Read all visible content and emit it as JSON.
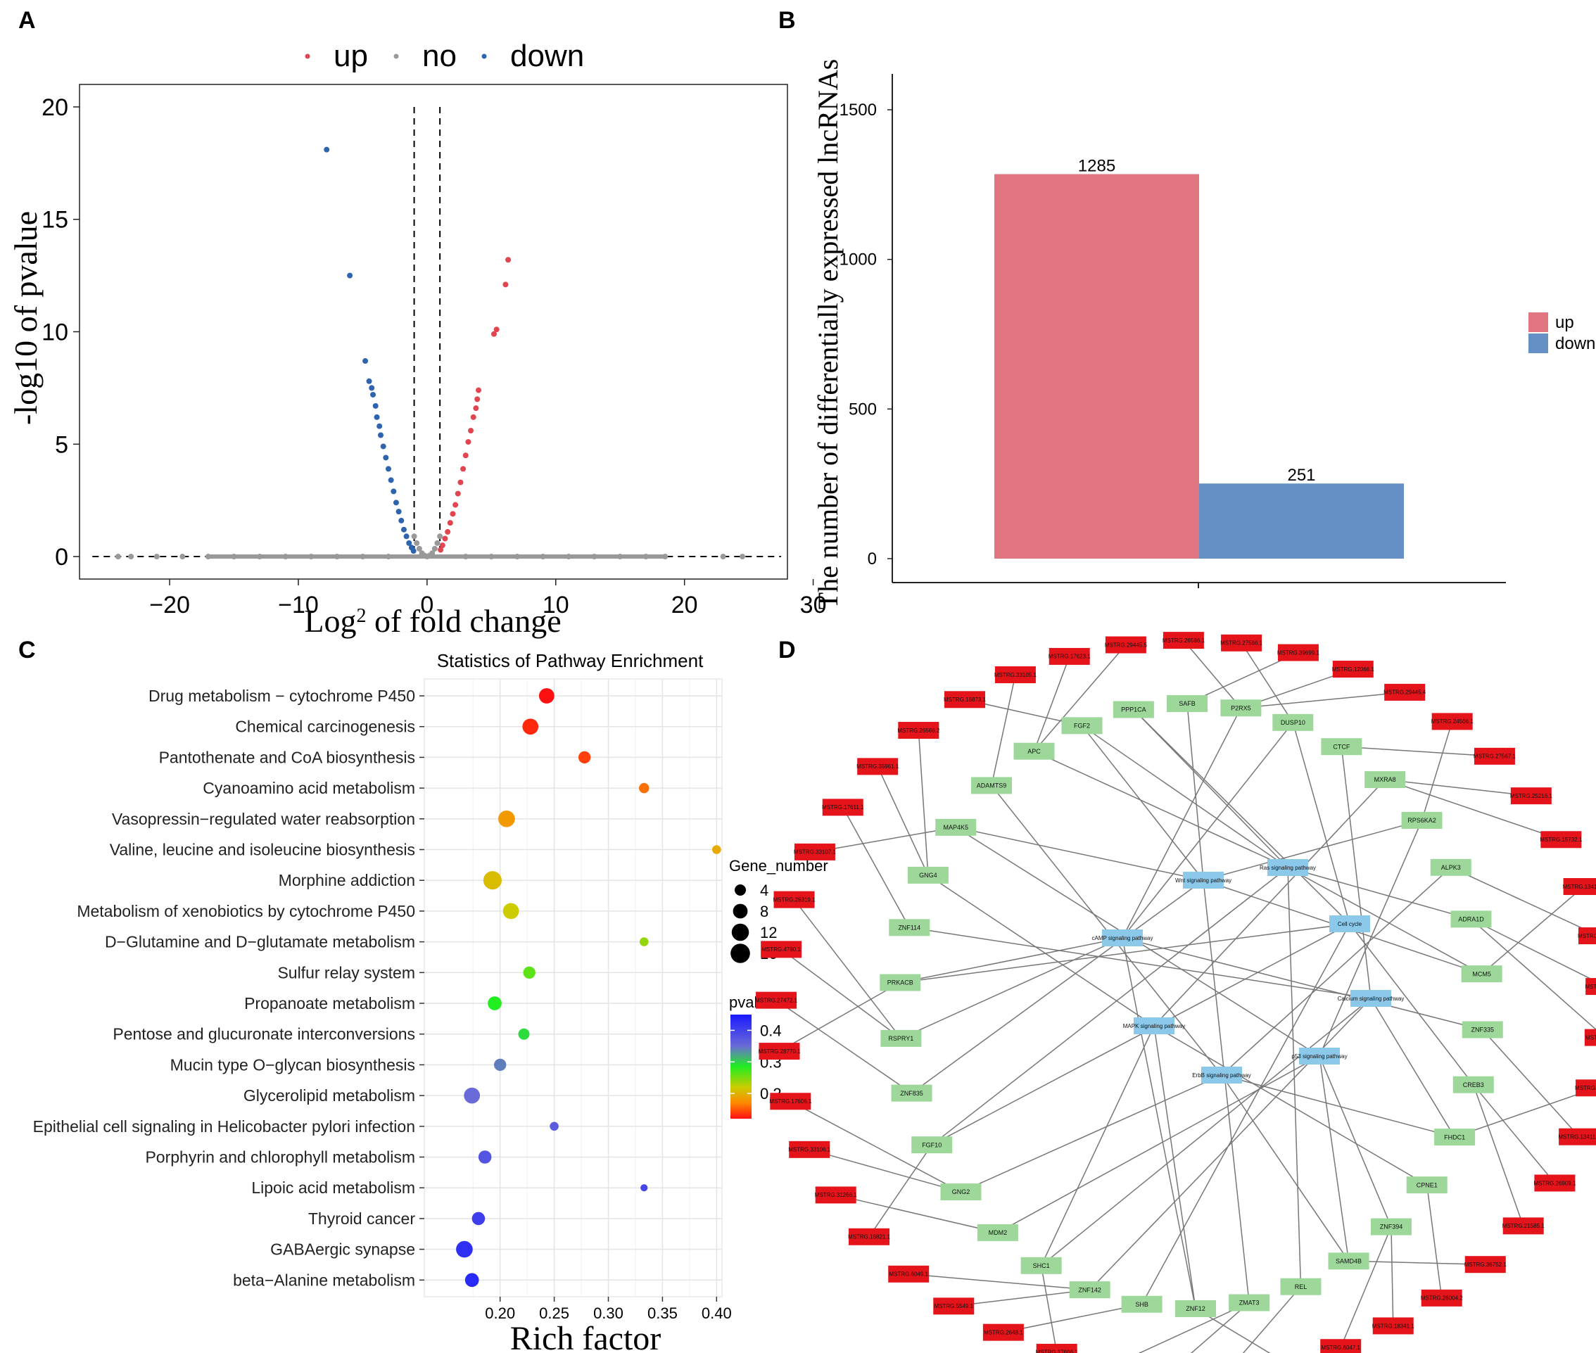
{
  "panel_labels": [
    "A",
    "B",
    "C",
    "D"
  ],
  "chart_data": [
    {
      "id": "A",
      "type": "scatter",
      "title": "",
      "xlabel": "Log2 of fold change",
      "xlabel_main": "Log",
      "xlabel_sub": "2",
      "xlabel_rest": " of fold change",
      "ylabel": "-log10 of pvalue",
      "xlim": [
        -27,
        28
      ],
      "ylim": [
        -1,
        21
      ],
      "xticks": [
        -20,
        -10,
        0,
        10,
        20,
        30
      ],
      "xtick_labels": [
        "−20",
        "−10",
        "0",
        "10",
        "20",
        "30"
      ],
      "yticks": [
        0,
        5,
        10,
        15,
        20
      ],
      "ytick_labels": [
        "0",
        "5",
        "10",
        "15",
        "20"
      ],
      "legend": {
        "labels": [
          "up",
          "no",
          "down"
        ],
        "colors": [
          "#e04550",
          "#999999",
          "#2e64ad"
        ],
        "placement": "top"
      },
      "threshold_lines": {
        "x": [
          -1,
          1
        ],
        "y": 0,
        "x_range": [
          -26,
          27.5
        ],
        "y_top": 20
      },
      "series": [
        {
          "name": "up",
          "color": "#e04550",
          "points": [
            [
              6.3,
              13.2
            ],
            [
              6.1,
              12.1
            ],
            [
              5.4,
              10.1
            ],
            [
              5.2,
              9.9
            ],
            [
              4.0,
              7.4
            ],
            [
              3.9,
              7.0
            ],
            [
              3.8,
              6.6
            ],
            [
              3.6,
              6.2
            ],
            [
              3.4,
              5.6
            ],
            [
              3.2,
              5.1
            ],
            [
              3.0,
              4.5
            ],
            [
              2.8,
              3.9
            ],
            [
              2.6,
              3.3
            ],
            [
              2.4,
              2.8
            ],
            [
              2.2,
              2.3
            ],
            [
              2.0,
              1.9
            ],
            [
              1.8,
              1.5
            ],
            [
              1.6,
              1.1
            ],
            [
              1.4,
              0.8
            ],
            [
              1.2,
              0.5
            ],
            [
              1.05,
              0.3
            ]
          ]
        },
        {
          "name": "down",
          "color": "#2e64ad",
          "points": [
            [
              -7.8,
              18.1
            ],
            [
              -6.0,
              12.5
            ],
            [
              -4.8,
              8.7
            ],
            [
              -4.5,
              7.8
            ],
            [
              -4.3,
              7.5
            ],
            [
              -4.2,
              7.2
            ],
            [
              -4.0,
              6.7
            ],
            [
              -3.9,
              6.2
            ],
            [
              -3.7,
              5.8
            ],
            [
              -3.6,
              5.4
            ],
            [
              -3.4,
              4.9
            ],
            [
              -3.2,
              4.4
            ],
            [
              -3.0,
              3.9
            ],
            [
              -2.8,
              3.4
            ],
            [
              -2.6,
              2.9
            ],
            [
              -2.4,
              2.4
            ],
            [
              -2.2,
              2.0
            ],
            [
              -2.0,
              1.6
            ],
            [
              -1.8,
              1.2
            ],
            [
              -1.6,
              0.9
            ],
            [
              -1.4,
              0.6
            ],
            [
              -1.2,
              0.4
            ],
            [
              -1.05,
              0.25
            ]
          ]
        },
        {
          "name": "no",
          "color": "#999999",
          "points": [
            [
              -1.0,
              0.9
            ],
            [
              -0.8,
              0.6
            ],
            [
              -0.6,
              0.35
            ],
            [
              -0.4,
              0.15
            ],
            [
              -0.2,
              0.05
            ],
            [
              0.0,
              0.0
            ],
            [
              0.2,
              0.05
            ],
            [
              0.4,
              0.15
            ],
            [
              0.6,
              0.35
            ],
            [
              0.8,
              0.6
            ],
            [
              1.0,
              0.9
            ],
            [
              -24,
              0
            ],
            [
              -23,
              0
            ],
            [
              -21,
              0
            ],
            [
              -19,
              0
            ],
            [
              -17,
              0
            ],
            [
              -15,
              0
            ],
            [
              -13,
              0
            ],
            [
              -11,
              0
            ],
            [
              -9,
              0
            ],
            [
              -7,
              0
            ],
            [
              -5,
              0
            ],
            [
              -3,
              0
            ],
            [
              3,
              0
            ],
            [
              5,
              0
            ],
            [
              7,
              0
            ],
            [
              9,
              0
            ],
            [
              11,
              0
            ],
            [
              13,
              0
            ],
            [
              15,
              0
            ],
            [
              17,
              0
            ],
            [
              18.5,
              0
            ],
            [
              23,
              0
            ],
            [
              24.5,
              0
            ]
          ]
        }
      ]
    },
    {
      "id": "B",
      "type": "bar",
      "title": "",
      "xlabel": "",
      "ylabel": "The number of differentially expressed lncRNAs",
      "ylim": [
        -80,
        1620
      ],
      "yticks": [
        0,
        500,
        1000,
        1500
      ],
      "ytick_labels": [
        "0",
        "500",
        "1000",
        "1500"
      ],
      "series": [
        {
          "name": "up",
          "value": 1285,
          "label": "1285",
          "color": "#e07580"
        },
        {
          "name": "down",
          "value": 251,
          "label": "251",
          "color": "#6590c5"
        }
      ],
      "legend": {
        "labels": [
          "up",
          "down"
        ],
        "placement": "right"
      }
    },
    {
      "id": "C",
      "type": "scatter",
      "title": "Statistics of Pathway Enrichment",
      "xlabel": "Rich factor",
      "ylabel": "",
      "xlim": [
        0.13,
        0.405
      ],
      "xticks": [
        0.2,
        0.25,
        0.3,
        0.35,
        0.4
      ],
      "xtick_labels": [
        "0.20",
        "0.25",
        "0.30",
        "0.35",
        "0.40"
      ],
      "size_legend": {
        "title": "Gene_number",
        "values": [
          4,
          8,
          12,
          16
        ],
        "labels": [
          "4",
          "8",
          "12",
          "16"
        ]
      },
      "color_legend": {
        "title": "pvalue",
        "ticks": [
          0.4,
          0.3,
          0.2
        ],
        "labels": [
          "0.4",
          "0.3",
          "0.2"
        ],
        "range": [
          0.12,
          0.45
        ]
      },
      "pathways": [
        {
          "name": "Drug metabolism − cytochrome P450",
          "rich": 0.243,
          "genes": 9,
          "pvalue": 0.12
        },
        {
          "name": "Chemical carcinogenesis",
          "rich": 0.228,
          "genes": 10,
          "pvalue": 0.13
        },
        {
          "name": "Pantothenate and CoA biosynthesis",
          "rich": 0.278,
          "genes": 5,
          "pvalue": 0.14
        },
        {
          "name": "Cyanoamino acid metabolism",
          "rich": 0.333,
          "genes": 3,
          "pvalue": 0.16
        },
        {
          "name": "Vasopressin−regulated water reabsorption",
          "rich": 0.206,
          "genes": 11,
          "pvalue": 0.18
        },
        {
          "name": "Valine, leucine and isoleucine biosynthesis",
          "rich": 0.4,
          "genes": 2,
          "pvalue": 0.19
        },
        {
          "name": "Morphine addiction",
          "rich": 0.193,
          "genes": 14,
          "pvalue": 0.2
        },
        {
          "name": "Metabolism of xenobiotics by cytochrome P450",
          "rich": 0.21,
          "genes": 10,
          "pvalue": 0.21
        },
        {
          "name": "D−Glutamine and D−glutamate metabolism",
          "rich": 0.333,
          "genes": 2,
          "pvalue": 0.23
        },
        {
          "name": "Sulfur relay system",
          "rich": 0.227,
          "genes": 5,
          "pvalue": 0.25
        },
        {
          "name": "Propanoate metabolism",
          "rich": 0.195,
          "genes": 7,
          "pvalue": 0.27
        },
        {
          "name": "Pentose and glucuronate interconversions",
          "rich": 0.222,
          "genes": 4,
          "pvalue": 0.28
        },
        {
          "name": "Mucin type O−glycan biosynthesis",
          "rich": 0.2,
          "genes": 5,
          "pvalue": 0.33
        },
        {
          "name": "Glycerolipid metabolism",
          "rich": 0.174,
          "genes": 10,
          "pvalue": 0.34
        },
        {
          "name": "Epithelial cell signaling in Helicobacter pylori infection",
          "rich": 0.25,
          "genes": 2,
          "pvalue": 0.36
        },
        {
          "name": "Porphyrin and chlorophyll metabolism",
          "rich": 0.186,
          "genes": 6,
          "pvalue": 0.37
        },
        {
          "name": "Lipoic acid metabolism",
          "rich": 0.333,
          "genes": 1,
          "pvalue": 0.39
        },
        {
          "name": "Thyroid cancer",
          "rich": 0.18,
          "genes": 6,
          "pvalue": 0.4
        },
        {
          "name": "GABAergic synapse",
          "rich": 0.167,
          "genes": 11,
          "pvalue": 0.42
        },
        {
          "name": "beta−Alanine metabolism",
          "rich": 0.174,
          "genes": 7,
          "pvalue": 0.43
        }
      ]
    }
  ],
  "network": {
    "pathways": [
      "Ras signaling pathway",
      "Wnt signaling pathway",
      "cAMP signaling pathway",
      "Cell cycle",
      "Calcium signaling pathway",
      "MAPK signaling pathway",
      "p53 signaling pathway",
      "ErbB signaling pathway"
    ],
    "genes": [
      "PPP1CA",
      "SAFB",
      "P2RX5",
      "DUSP10",
      "CTCF",
      "MXRA8",
      "RPS6KA2",
      "ALPK3",
      "ADRA1D",
      "MCM5",
      "ZNF335",
      "CREB3",
      "FHDC1",
      "CPNE1",
      "ZNF394",
      "SAMD4B",
      "REL",
      "ZMAT3",
      "ZNF12",
      "SHB",
      "ZNF142",
      "SHC1",
      "MDM2",
      "GNG2",
      "FGF10",
      "ZNF835",
      "RSPRY1",
      "PRKACB",
      "ZNF114",
      "GNG4",
      "MAP4K5",
      "ADAMTS9",
      "APC",
      "FGF2"
    ],
    "lncrnas": [
      "MSTRG.27566.1",
      "MSTRG.39699.1",
      "MSTRG.12066.1",
      "MSTRG.29445.4",
      "MSTRG.24506.1",
      "MSTRG.27567.1",
      "MSTRG.25216.1",
      "MSTRG.15732.1",
      "MSTRG.13412.1",
      "MSTRG.31854.1",
      "MSTRG.21145.1",
      "MSTRG.8549.1",
      "MSTRG.21786.1",
      "MSTRG.13411.1",
      "MSTRG.26909.1",
      "MSTRG.21585.1",
      "MSTRG.36752.1",
      "MSTRG.28004.2",
      "MSTRG.18341.1",
      "MSTRG.6047.1",
      "MSTRG.926.1",
      "MSTRG.15731.1",
      "MSTRG.36883.1",
      "MSTRG.13467.1",
      "MSTRG.17606.1",
      "MSTRG.2648.1",
      "MSTRG.5549.1",
      "MSTRG.6049.1",
      "MSTRG.16821.1",
      "MSTRG.31266.1",
      "MSTRG.33106.1",
      "MSTRG.17606.1",
      "MSTRG.28770.1",
      "MSTRG.27472.1",
      "MSTRG.4780.1",
      "MSTRG.28319.1",
      "MSTRG.33107.1",
      "MSTRG.17611.1",
      "MSTRG.35961.1",
      "MSTRG.26566.2",
      "MSTRG.16873.1",
      "MSTRG.33105.1",
      "MSTRG.17623.1",
      "MSTRG.29445.5",
      "MSTRG.26586.1"
    ]
  }
}
